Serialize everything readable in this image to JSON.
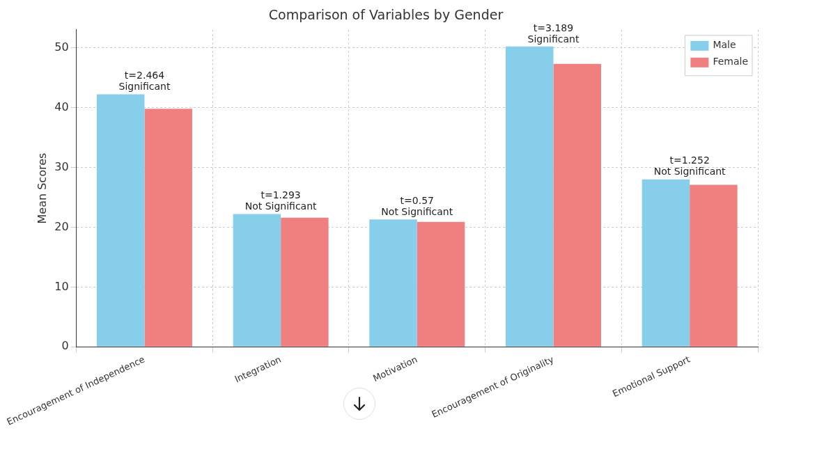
{
  "chart_data": {
    "type": "bar",
    "title": "Comparison of Variables by Gender",
    "ylabel": "Mean Scores",
    "categories": [
      "Encouragement of Independence",
      "Integration",
      "Motivation",
      "Encouragement of Originality",
      "Emotional Support"
    ],
    "series": [
      {
        "name": "Male",
        "color": "#87ceeb",
        "values": [
          42.2,
          22.2,
          21.3,
          50.2,
          28.0
        ]
      },
      {
        "name": "Female",
        "color": "#f08080",
        "values": [
          39.8,
          21.6,
          20.9,
          47.3,
          27.1
        ]
      }
    ],
    "ylim": [
      0,
      53
    ],
    "yticks": [
      0,
      10,
      20,
      30,
      40,
      50
    ],
    "grid": true,
    "legend": "top right",
    "annotations": [
      {
        "text": "t=2.464\nSignificant",
        "x": "Encouragement of Independence",
        "y": 42.2
      },
      {
        "text": "t=1.293\nNot Significant",
        "x": "Integration",
        "y": 22.2
      },
      {
        "text": "t=0.57\nNot Significant",
        "x": "Motivation",
        "y": 21.3
      },
      {
        "text": "t=3.189\nSignificant",
        "x": "Encouragement of Originality",
        "y": 50.2
      },
      {
        "text": "t=1.252\nNot Significant",
        "x": "Emotional Support",
        "y": 28.0
      }
    ]
  }
}
